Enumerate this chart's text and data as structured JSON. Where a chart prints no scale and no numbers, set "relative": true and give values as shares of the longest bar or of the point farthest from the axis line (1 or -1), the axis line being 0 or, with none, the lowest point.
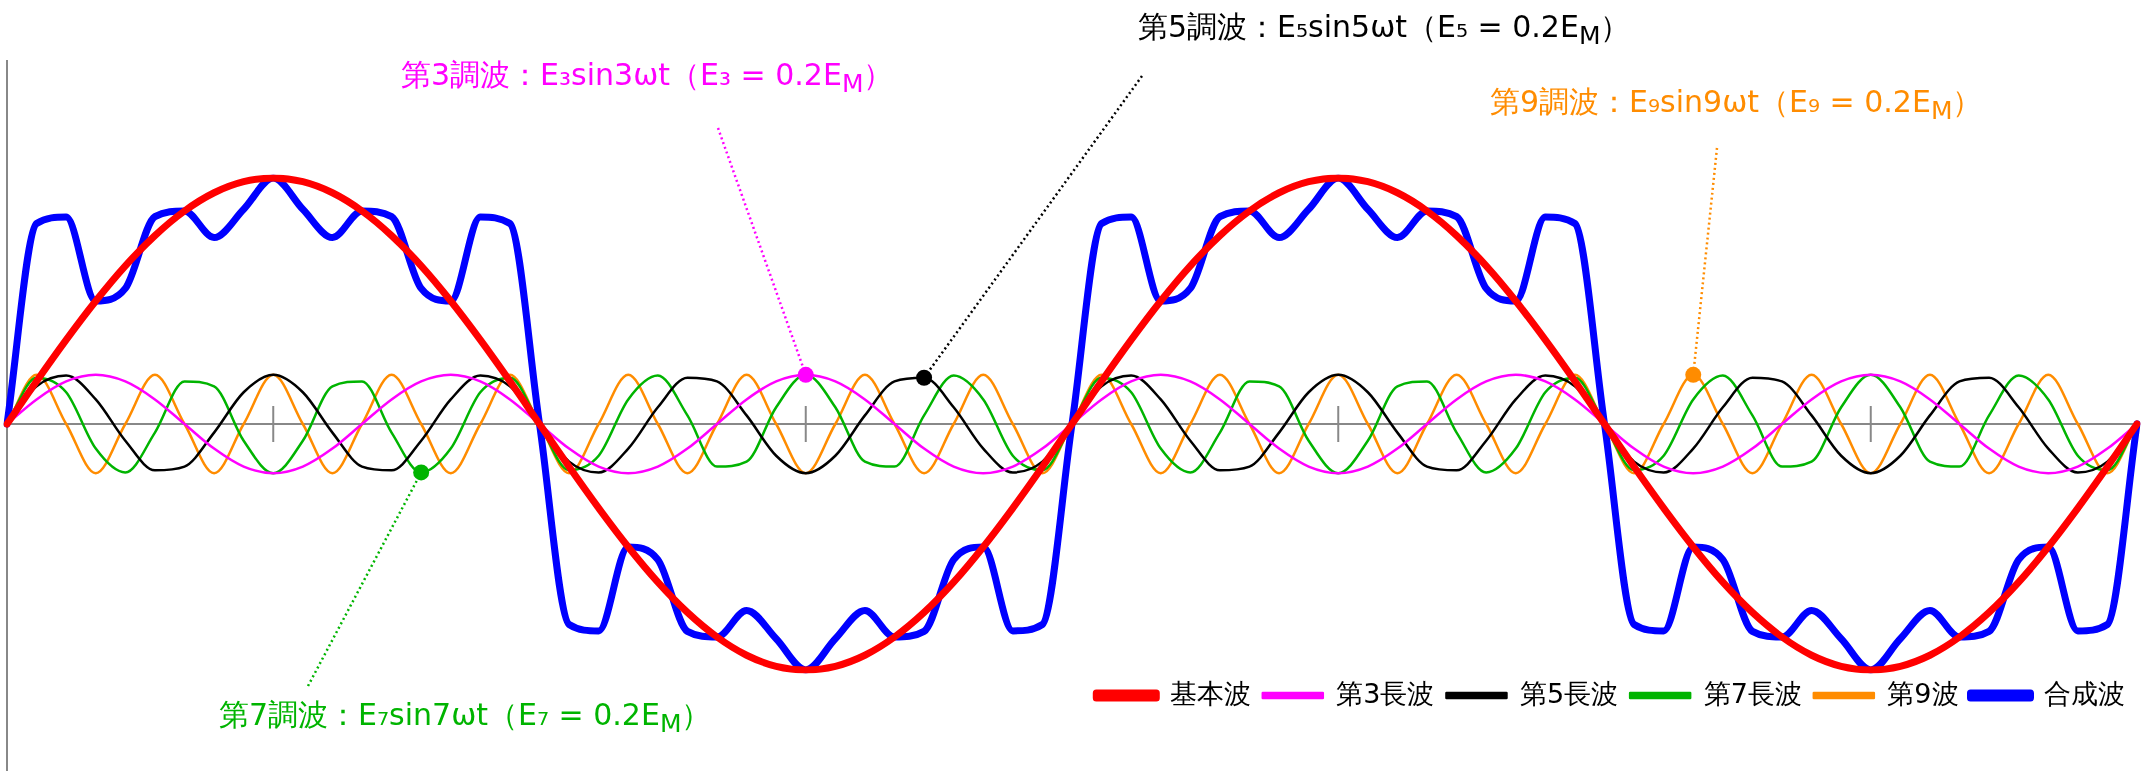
{
  "chart_data": {
    "type": "line",
    "relative": true,
    "legend": "bottom right",
    "marker": "none",
    "line_style": "solid",
    "categories": [
      null,
      null,
      null,
      null,
      null,
      null,
      null,
      null,
      null,
      null,
      null,
      null,
      null,
      null,
      null,
      null,
      null,
      null,
      null,
      null,
      null,
      null,
      null,
      null,
      null,
      null,
      null,
      null,
      null,
      null,
      null,
      null,
      null,
      null,
      null,
      null,
      null,
      null,
      null,
      null,
      null,
      null,
      null,
      null,
      null,
      null,
      null,
      null,
      null,
      null,
      null,
      null,
      null,
      null,
      null,
      null,
      null,
      null,
      null,
      null,
      null,
      null,
      null,
      null,
      null,
      null,
      null,
      null,
      null,
      null,
      null,
      null,
      null
    ],
    "series": [
      {
        "name": "基本波",
        "color": "#ff0000",
        "values": [
          0,
          0.174,
          0.342,
          0.5,
          0.643,
          0.766,
          0.866,
          0.94,
          0.985,
          1,
          0.985,
          0.94,
          0.866,
          0.766,
          0.643,
          0.5,
          0.342,
          0.174,
          0,
          -0.174,
          -0.342,
          -0.5,
          -0.643,
          -0.766,
          -0.866,
          -0.94,
          -0.985,
          -1,
          -0.985,
          -0.94,
          -0.866,
          -0.766,
          -0.643,
          -0.5,
          -0.342,
          -0.174,
          0,
          0.174,
          0.342,
          0.5,
          0.643,
          0.766,
          0.866,
          0.94,
          0.985,
          1,
          0.985,
          0.94,
          0.866,
          0.766,
          0.643,
          0.5,
          0.342,
          0.174,
          0,
          -0.174,
          -0.342,
          -0.5,
          -0.643,
          -0.766,
          -0.866,
          -0.94,
          -0.985,
          -1,
          -0.985,
          -0.94,
          -0.866,
          -0.766,
          -0.643,
          -0.5,
          -0.342,
          -0.174,
          0
        ]
      },
      {
        "name": "第3長波",
        "color": "#ff00ff",
        "values": [
          0,
          0.1,
          0.173,
          0.2,
          0.173,
          0.1,
          0,
          -0.1,
          -0.173,
          -0.2,
          -0.173,
          -0.1,
          0,
          0.1,
          0.173,
          0.2,
          0.173,
          0.1,
          0,
          -0.1,
          -0.173,
          -0.2,
          -0.173,
          -0.1,
          0,
          0.1,
          0.173,
          0.2,
          0.173,
          0.1,
          0,
          -0.1,
          -0.173,
          -0.2,
          -0.173,
          -0.1,
          0,
          0.1,
          0.173,
          0.2,
          0.173,
          0.1,
          0,
          -0.1,
          -0.173,
          -0.2,
          -0.173,
          -0.1,
          0,
          0.1,
          0.173,
          0.2,
          0.173,
          0.1,
          0,
          -0.1,
          -0.173,
          -0.2,
          -0.173,
          -0.1,
          0,
          0.1,
          0.173,
          0.2,
          0.173,
          0.1,
          0,
          -0.1,
          -0.173,
          -0.2,
          -0.173,
          -0.1,
          0
        ]
      },
      {
        "name": "第5長波",
        "color": "#000000",
        "values": [
          0,
          0.153,
          0.197,
          0.1,
          -0.068,
          -0.188,
          -0.173,
          -0.035,
          0.129,
          0.2,
          0.129,
          -0.035,
          -0.173,
          -0.188,
          -0.068,
          0.1,
          0.197,
          0.153,
          0,
          -0.153,
          -0.197,
          -0.1,
          0.068,
          0.188,
          0.173,
          0.035,
          -0.129,
          -0.2,
          -0.129,
          0.035,
          0.173,
          0.188,
          0.068,
          -0.1,
          -0.197,
          -0.153,
          0,
          0.153,
          0.197,
          0.1,
          -0.068,
          -0.188,
          -0.173,
          -0.035,
          0.129,
          0.2,
          0.129,
          -0.035,
          -0.173,
          -0.188,
          -0.068,
          0.1,
          0.197,
          0.153,
          0,
          -0.153,
          -0.197,
          -0.1,
          0.068,
          0.188,
          0.173,
          0.035,
          -0.129,
          -0.2,
          -0.129,
          0.035,
          0.173,
          0.188,
          0.068,
          -0.1,
          -0.197,
          -0.153,
          0
        ]
      },
      {
        "name": "第7長波",
        "color": "#00b400",
        "values": [
          0,
          0.188,
          0.129,
          -0.1,
          -0.197,
          -0.035,
          0.173,
          0.153,
          -0.068,
          -0.2,
          -0.068,
          0.153,
          0.173,
          -0.035,
          -0.197,
          -0.1,
          0.129,
          0.188,
          0,
          -0.188,
          -0.129,
          0.1,
          0.197,
          0.035,
          -0.173,
          -0.153,
          0.068,
          0.2,
          0.068,
          -0.153,
          -0.173,
          0.035,
          0.197,
          0.1,
          -0.129,
          -0.188,
          0,
          0.188,
          0.129,
          -0.1,
          -0.197,
          -0.035,
          0.173,
          0.153,
          -0.068,
          -0.2,
          -0.068,
          0.153,
          0.173,
          -0.035,
          -0.197,
          -0.1,
          0.129,
          0.188,
          0,
          -0.188,
          -0.129,
          0.1,
          0.197,
          0.035,
          -0.173,
          -0.153,
          0.068,
          0.2,
          0.068,
          -0.153,
          -0.173,
          0.035,
          0.197,
          0.1,
          -0.129,
          -0.188,
          0
        ]
      },
      {
        "name": "第9波",
        "color": "#ff8c00",
        "values": [
          0,
          0.2,
          0,
          -0.2,
          0,
          0.2,
          0,
          -0.2,
          0,
          0.2,
          0,
          -0.2,
          0,
          0.2,
          0,
          -0.2,
          0,
          0.2,
          0,
          -0.2,
          0,
          0.2,
          0,
          -0.2,
          0,
          0.2,
          0,
          -0.2,
          0,
          0.2,
          0,
          -0.2,
          0,
          0.2,
          0,
          -0.2,
          0,
          0.2,
          0,
          -0.2,
          0,
          0.2,
          0,
          -0.2,
          0,
          0.2,
          0,
          -0.2,
          0,
          0.2,
          0,
          -0.2,
          0,
          0.2,
          0,
          -0.2,
          0,
          0.2,
          0,
          -0.2,
          0,
          0.2,
          0,
          -0.2,
          0,
          0.2,
          0,
          -0.2,
          0,
          0.2,
          0,
          -0.2,
          0
        ]
      },
      {
        "name": "合成波",
        "color": "#0000ff",
        "values": [
          0,
          0.815,
          0.841,
          0.5,
          0.551,
          0.843,
          0.866,
          0.758,
          0.873,
          1,
          0.873,
          0.758,
          0.866,
          0.843,
          0.551,
          0.5,
          0.841,
          0.815,
          0,
          -0.815,
          -0.841,
          -0.5,
          -0.551,
          -0.843,
          -0.866,
          -0.758,
          -0.873,
          -1,
          -0.873,
          -0.758,
          -0.866,
          -0.843,
          -0.551,
          -0.5,
          -0.841,
          -0.815,
          0,
          0.815,
          0.841,
          0.5,
          0.551,
          0.843,
          0.866,
          0.758,
          0.873,
          1,
          0.873,
          0.758,
          0.866,
          0.843,
          0.551,
          0.5,
          0.841,
          0.815,
          0,
          -0.815,
          -0.841,
          -0.5,
          -0.551,
          -0.843,
          -0.866,
          -0.758,
          -0.873,
          -1,
          -0.873,
          -0.758,
          -0.866,
          -0.843,
          -0.551,
          -0.5,
          -0.841,
          -0.815,
          0
        ]
      }
    ],
    "annotations": [
      "第3調波：E₃sin3ωt（E₃ = 0.2E$_{M}$）",
      "第5調波：E₅sin5ωt（E₅ = 0.2E$_{M}$）",
      "第9調波：E₉sin9ωt（E₉ = 0.2E$_{M}$）",
      "第7調波：E₇sin7ωt（E₇ = 0.2E$_{M}$）"
    ]
  }
}
